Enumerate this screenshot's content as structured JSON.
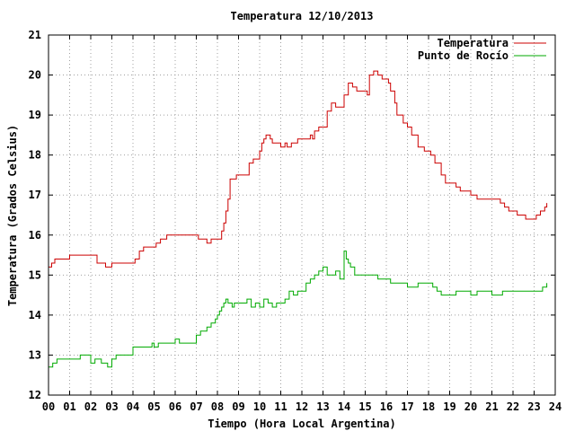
{
  "chart_data": {
    "type": "line",
    "title": "Temperatura 12/10/2013",
    "xlabel": "Tiempo (Hora Local Argentina)",
    "ylabel": "Temperatura (Grados Celsius)",
    "xlim": [
      0,
      24
    ],
    "ylim": [
      12,
      21
    ],
    "x_ticks": [
      "00",
      "01",
      "02",
      "03",
      "04",
      "05",
      "06",
      "07",
      "08",
      "09",
      "10",
      "11",
      "12",
      "13",
      "14",
      "15",
      "16",
      "17",
      "18",
      "19",
      "20",
      "21",
      "22",
      "23",
      "24"
    ],
    "y_ticks": [
      "12",
      "13",
      "14",
      "15",
      "16",
      "17",
      "18",
      "19",
      "20",
      "21"
    ],
    "grid": true,
    "legend_position": "top-right",
    "series": [
      {
        "name": "Temperatura",
        "color": "#cc0000",
        "x": [
          0,
          0.15,
          0.3,
          0.45,
          1.0,
          1.5,
          2.0,
          2.3,
          2.7,
          3.0,
          3.2,
          4.0,
          4.1,
          4.3,
          4.5,
          5.0,
          5.1,
          5.3,
          5.6,
          6.0,
          6.5,
          7.0,
          7.1,
          7.5,
          7.7,
          7.8,
          8.0,
          8.2,
          8.3,
          8.4,
          8.5,
          8.6,
          8.7,
          8.8,
          8.9,
          9.0,
          9.5,
          9.7,
          9.8,
          9.9,
          10.0,
          10.1,
          10.2,
          10.3,
          10.4,
          10.5,
          10.6,
          11.0,
          11.1,
          11.2,
          11.3,
          11.5,
          11.8,
          12.0,
          12.3,
          12.4,
          12.5,
          12.6,
          12.8,
          13.0,
          13.2,
          13.4,
          13.6,
          13.8,
          14.0,
          14.2,
          14.4,
          14.6,
          14.8,
          15.0,
          15.1,
          15.2,
          15.4,
          15.6,
          15.8,
          15.9,
          16.1,
          16.2,
          16.4,
          16.5,
          16.8,
          17.0,
          17.2,
          17.5,
          17.8,
          18.0,
          18.1,
          18.3,
          18.6,
          18.8,
          19.0,
          19.3,
          19.5,
          20.0,
          20.3,
          20.8,
          21.0,
          21.2,
          21.4,
          21.6,
          21.8,
          22.0,
          22.2,
          22.4,
          22.6,
          22.9,
          23.0,
          23.1,
          23.3,
          23.5,
          23.6
        ],
        "values": [
          15.2,
          15.3,
          15.4,
          15.4,
          15.5,
          15.5,
          15.5,
          15.3,
          15.2,
          15.3,
          15.3,
          15.3,
          15.4,
          15.6,
          15.7,
          15.7,
          15.8,
          15.9,
          16.0,
          16.0,
          16.0,
          16.0,
          15.9,
          15.8,
          15.9,
          15.9,
          15.9,
          16.1,
          16.3,
          16.6,
          16.9,
          17.4,
          17.4,
          17.4,
          17.5,
          17.5,
          17.8,
          17.9,
          17.9,
          17.9,
          18.1,
          18.3,
          18.4,
          18.5,
          18.5,
          18.4,
          18.3,
          18.2,
          18.2,
          18.3,
          18.2,
          18.3,
          18.4,
          18.4,
          18.4,
          18.5,
          18.4,
          18.6,
          18.7,
          18.7,
          19.1,
          19.3,
          19.2,
          19.2,
          19.5,
          19.8,
          19.7,
          19.6,
          19.6,
          19.6,
          19.5,
          20.0,
          20.1,
          20.0,
          19.9,
          19.9,
          19.8,
          19.6,
          19.3,
          19.0,
          18.8,
          18.7,
          18.5,
          18.2,
          18.1,
          18.1,
          18.0,
          17.8,
          17.5,
          17.3,
          17.3,
          17.2,
          17.1,
          17.0,
          16.9,
          16.9,
          16.9,
          16.9,
          16.8,
          16.7,
          16.6,
          16.6,
          16.5,
          16.5,
          16.4,
          16.4,
          16.4,
          16.5,
          16.6,
          16.7,
          16.8
        ]
      },
      {
        "name": "Punto de Rocío",
        "color": "#00aa00",
        "x": [
          0,
          0.2,
          0.4,
          0.6,
          1.0,
          1.5,
          1.8,
          2.0,
          2.2,
          2.5,
          2.8,
          3.0,
          3.2,
          3.5,
          3.7,
          4.0,
          4.5,
          4.9,
          5.0,
          5.2,
          5.5,
          6.0,
          6.2,
          6.5,
          7.0,
          7.2,
          7.5,
          7.7,
          7.9,
          8.0,
          8.1,
          8.2,
          8.3,
          8.4,
          8.5,
          8.6,
          8.7,
          8.8,
          9.0,
          9.2,
          9.4,
          9.6,
          9.8,
          10.0,
          10.2,
          10.4,
          10.6,
          10.8,
          11.0,
          11.2,
          11.4,
          11.6,
          11.8,
          12.0,
          12.2,
          12.4,
          12.6,
          12.8,
          13.0,
          13.2,
          13.4,
          13.6,
          13.8,
          14.0,
          14.1,
          14.2,
          14.3,
          14.5,
          14.8,
          15.0,
          15.2,
          15.4,
          15.6,
          15.8,
          16.0,
          16.2,
          16.4,
          16.6,
          16.8,
          17.0,
          17.2,
          17.5,
          17.8,
          18.0,
          18.2,
          18.4,
          18.6,
          18.8,
          19.0,
          19.3,
          19.6,
          20.0,
          20.3,
          20.7,
          21.0,
          21.2,
          21.5,
          21.8,
          22.0,
          22.2,
          22.5,
          22.8,
          23.0,
          23.2,
          23.4,
          23.6
        ],
        "values": [
          12.7,
          12.8,
          12.9,
          12.9,
          12.9,
          13.0,
          13.0,
          12.8,
          12.9,
          12.8,
          12.7,
          12.9,
          13.0,
          13.0,
          13.0,
          13.2,
          13.2,
          13.3,
          13.2,
          13.3,
          13.3,
          13.4,
          13.3,
          13.3,
          13.5,
          13.6,
          13.7,
          13.8,
          13.9,
          14.0,
          14.1,
          14.2,
          14.3,
          14.4,
          14.3,
          14.3,
          14.2,
          14.3,
          14.3,
          14.3,
          14.4,
          14.2,
          14.3,
          14.2,
          14.4,
          14.3,
          14.2,
          14.3,
          14.3,
          14.4,
          14.6,
          14.5,
          14.6,
          14.6,
          14.8,
          14.9,
          15.0,
          15.1,
          15.2,
          15.0,
          15.0,
          15.1,
          14.9,
          15.6,
          15.4,
          15.3,
          15.2,
          15.0,
          15.0,
          15.0,
          15.0,
          15.0,
          14.9,
          14.9,
          14.9,
          14.8,
          14.8,
          14.8,
          14.8,
          14.7,
          14.7,
          14.8,
          14.8,
          14.8,
          14.7,
          14.6,
          14.5,
          14.5,
          14.5,
          14.6,
          14.6,
          14.5,
          14.6,
          14.6,
          14.5,
          14.5,
          14.6,
          14.6,
          14.6,
          14.6,
          14.6,
          14.6,
          14.6,
          14.6,
          14.7,
          14.8
        ]
      }
    ]
  }
}
